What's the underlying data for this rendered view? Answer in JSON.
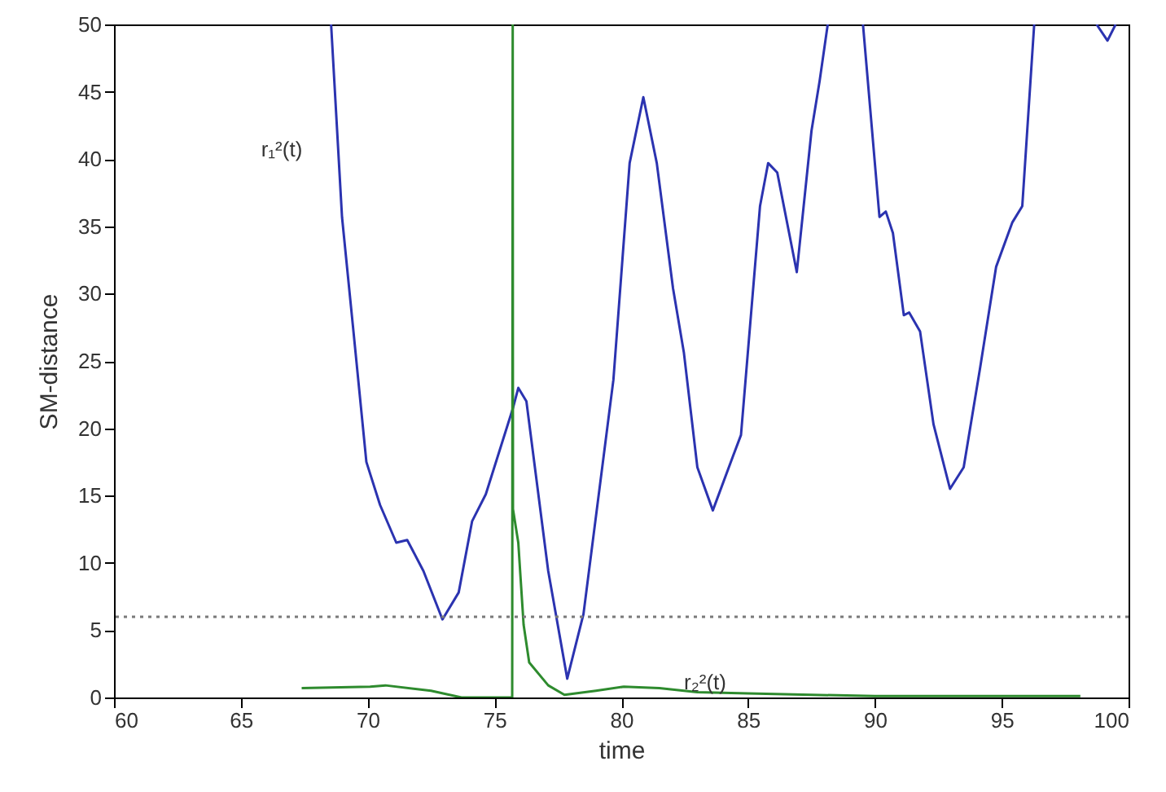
{
  "chart_data": {
    "type": "line",
    "xlabel": "time",
    "ylabel": "SM-distance",
    "xlim": [
      60,
      100
    ],
    "ylim": [
      0,
      50
    ],
    "xticks": [
      60,
      65,
      70,
      75,
      80,
      85,
      90,
      95,
      100
    ],
    "yticks": [
      0,
      5,
      10,
      15,
      20,
      25,
      30,
      35,
      40,
      45,
      50
    ],
    "grid": false,
    "marker": "none",
    "line_style": "solid",
    "series": [
      {
        "name": "r₁²(t)",
        "color": "#2b33b0",
        "x": [
          68.56,
          68.99,
          69.42,
          69.95,
          70.49,
          71.13,
          71.56,
          72.2,
          72.95,
          73.59,
          74.12,
          74.66,
          75.73,
          75.94,
          76.26,
          77.12,
          77.87,
          78.51,
          79.69,
          80.33,
          80.87,
          81.4,
          82.04,
          82.47,
          83.0,
          83.61,
          84.4,
          84.72,
          85.47,
          85.79,
          86.15,
          86.92,
          87.5,
          87.82,
          88.14,
          88.8,
          89.53,
          90.18,
          90.43,
          90.71,
          91.14,
          91.35,
          91.78,
          92.31,
          92.96,
          93.5,
          94.14,
          94.78,
          95.42,
          95.81,
          96.28,
          97.5,
          98.74,
          99.17,
          99.49
        ],
        "values": [
          50,
          35.7,
          27.6,
          17.5,
          14.3,
          11.5,
          11.7,
          9.4,
          5.8,
          7.8,
          13.1,
          15.1,
          21.5,
          23.0,
          22,
          9.4,
          1.4,
          6.2,
          23.6,
          39.7,
          44.6,
          39.7,
          30.4,
          25.6,
          17.1,
          13.9,
          17.9,
          19.5,
          36.5,
          39.7,
          39.0,
          31.6,
          42.1,
          45.8,
          50,
          null,
          50,
          35.7,
          36.1,
          34.5,
          28.4,
          28.6,
          27.2,
          20.3,
          15.5,
          17.1,
          24.4,
          32.0,
          35.3,
          36.5,
          50,
          null,
          50,
          48.8,
          50
        ]
      },
      {
        "name": "r₂²(t)",
        "color": "#2e8b2e",
        "x": [
          67.4,
          70.1,
          70.7,
          72.5,
          73.7,
          75.6,
          75.7,
          75.72,
          75.73,
          75.94,
          76.15,
          76.37,
          77.12,
          77.76,
          79.0,
          80.1,
          81.5,
          83.0,
          85.0,
          87.5,
          90.0,
          94.0,
          98.1
        ],
        "values": [
          0.7,
          0.8,
          0.9,
          0.5,
          0,
          0,
          0,
          50,
          14,
          11.5,
          5.4,
          2.6,
          0.9,
          0.2,
          0.5,
          0.8,
          0.7,
          0.4,
          0.3,
          0.2,
          0.1,
          0.1,
          0.1
        ]
      }
    ],
    "ref_lines": [
      {
        "axis": "y",
        "value": 6,
        "color": "#7a7a7a",
        "line_style": "dotted"
      }
    ]
  }
}
